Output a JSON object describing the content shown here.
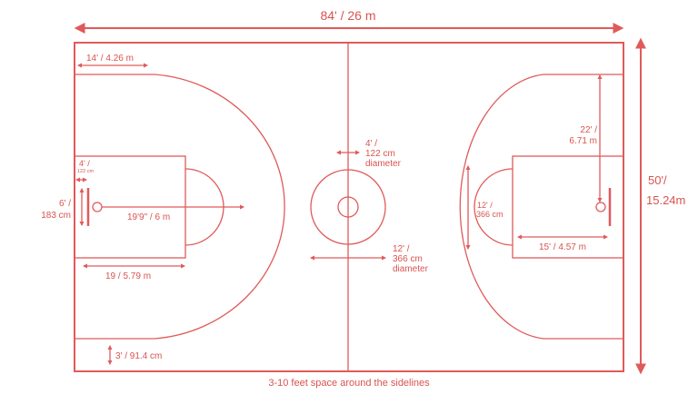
{
  "colors": {
    "line": "#e05a5a",
    "text": "#d9534f",
    "background": "#ffffff"
  },
  "dimensions": {
    "length": "84' / 26 m",
    "width_line1": "50'/",
    "width_line2": "15.24m",
    "corner_three_distance": "14' / 4.26 m",
    "backboard_distance_line1": "4' /",
    "backboard_distance_line2": "122 cm",
    "backboard_width_line1": "6' /",
    "backboard_width_line2": "183 cm",
    "three_point_radius": "19'9\" / 6 m",
    "free_throw_distance": "19 / 5.79 m",
    "corner_line_distance": "3' / 91.4 cm",
    "center_inner_line1": "4' /",
    "center_inner_line2": "122 cm",
    "center_inner_line3": "diameter",
    "center_outer_line1": "12' /",
    "center_outer_line2": "366 cm",
    "center_outer_line3": "diameter",
    "three_point_arc_line1": "22' /",
    "three_point_arc_line2": "6.71 m",
    "key_width_line1": "12' /",
    "key_width_line2": "366 cm",
    "key_length": "15' / 4.57 m"
  },
  "caption": "3-10 feet space around the sidelines"
}
